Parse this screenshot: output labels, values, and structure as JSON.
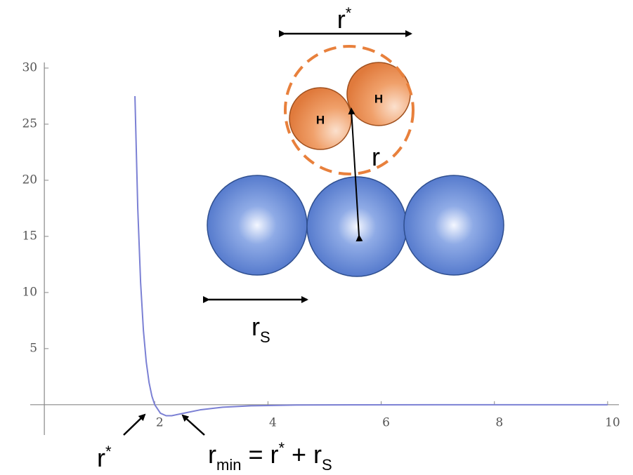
{
  "chart_data": {
    "type": "line",
    "x": [
      1.65,
      1.7,
      1.75,
      1.8,
      1.85,
      1.9,
      1.95,
      2.0,
      2.1,
      2.2,
      2.3,
      2.5,
      2.8,
      3.2,
      3.7,
      4.5,
      5.5,
      7,
      8.5,
      10
    ],
    "values": [
      27.5,
      17.5,
      10.9,
      6.6,
      3.8,
      1.96,
      0.76,
      0,
      -0.76,
      -0.98,
      -0.98,
      -0.77,
      -0.46,
      -0.22,
      -0.1,
      -0.03,
      -0.009,
      -0.002,
      -0.001,
      0
    ],
    "color": "#7b80d4",
    "xlim": [
      -0.2,
      10.2
    ],
    "ylim": [
      -2.7,
      30.5
    ],
    "xticks": [
      2,
      4,
      6,
      8,
      10
    ],
    "yticks": [
      5,
      10,
      15,
      20,
      25,
      30
    ],
    "annotations": {
      "top_rstar": {
        "base": "r",
        "sup": "*"
      },
      "r": "r",
      "atom1": "H",
      "atom2": "H",
      "rs": {
        "base": "r",
        "sub": "S"
      },
      "bottom_rstar": {
        "base": "r",
        "sup": "*"
      },
      "rmin": {
        "base": "r",
        "sub": "min",
        "mid": " = r",
        "sup": "*",
        "plus": " + r",
        "sub2": "S"
      }
    }
  }
}
